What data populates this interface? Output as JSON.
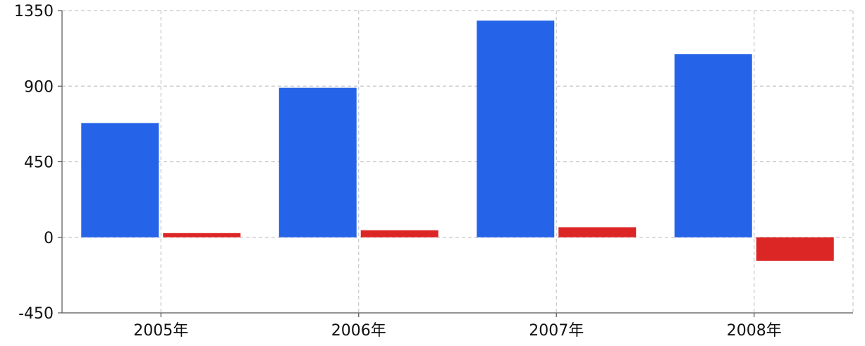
{
  "chart_data": {
    "type": "bar",
    "categories": [
      "2005年",
      "2006年",
      "2007年",
      "2008年"
    ],
    "series": [
      {
        "values": [
          680,
          890,
          1290,
          1090
        ],
        "color": "#2563e8"
      },
      {
        "values": [
          25,
          42,
          60,
          -140
        ],
        "color": "#dc2626"
      }
    ],
    "ylim": [
      -450,
      1350
    ],
    "yticks": [
      "1350",
      "900",
      "450",
      "0",
      "-450"
    ],
    "grid": true,
    "legend": "none"
  }
}
